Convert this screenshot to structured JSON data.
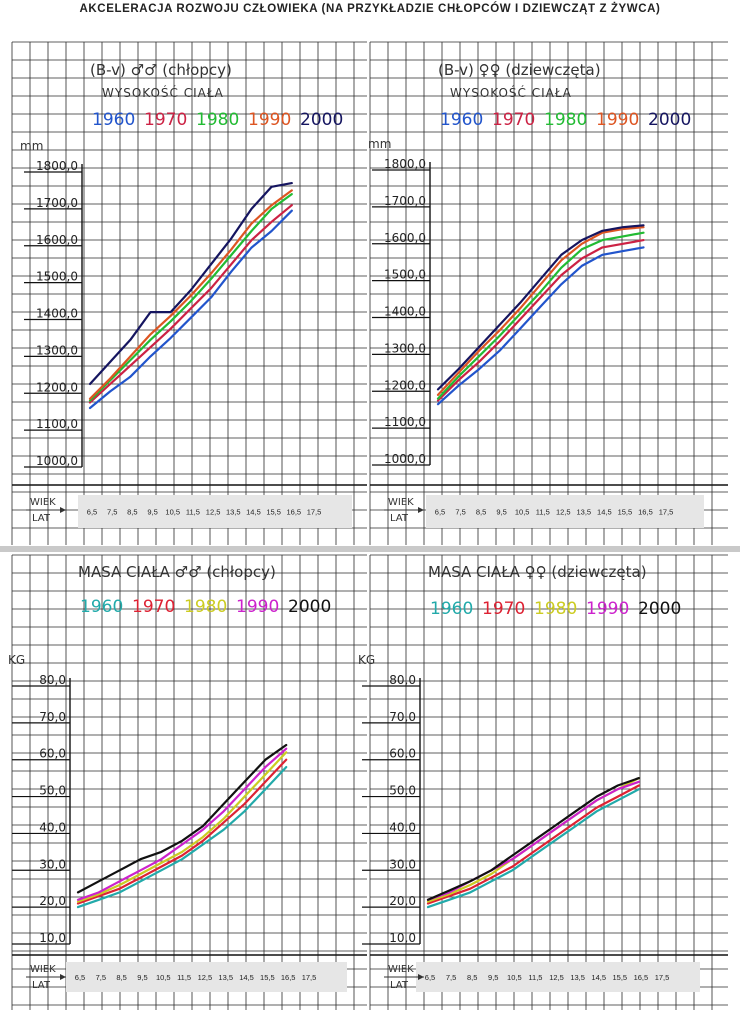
{
  "page_title": "AKCELERACJA ROZWOJU CZŁOWIEKA (NA PRZYKŁADZIE CHŁOPCÓW I DZIEWCZĄT Z ŻYWCA)",
  "chart_data": [
    {
      "id": "boys-height",
      "type": "line",
      "title": "(B-v) ♂♂ (chłopcy)",
      "subtitle": "WYSOKOŚĆ CIAŁA",
      "ylabel": "mm",
      "xlabel": "WIEK LAT",
      "ylim": [
        1000,
        1800
      ],
      "yticks": [
        "1800,0",
        "1700,0",
        "1600,0",
        "1500,0",
        "1400,0",
        "1300,0",
        "1200,0",
        "1100,0",
        "1000,0"
      ],
      "ytick_values": [
        1800,
        1700,
        1600,
        1500,
        1400,
        1300,
        1200,
        1100,
        1000
      ],
      "x": [
        6.5,
        7.5,
        8.5,
        9.5,
        10.5,
        11.5,
        12.5,
        13.5,
        14.5,
        15.5,
        16.5
      ],
      "xticks": [
        "6,5",
        "7,5",
        "8,5",
        "9,5",
        "10,5",
        "11,5",
        "12,5",
        "13,5",
        "14,5",
        "15,5",
        "16,5",
        "17,5"
      ],
      "series": [
        {
          "name": "1960",
          "color": "#2255cc",
          "values": [
            1160,
            1205,
            1245,
            1300,
            1350,
            1405,
            1460,
            1530,
            1595,
            1640,
            1695
          ]
        },
        {
          "name": "1970",
          "color": "#cc2244",
          "values": [
            1175,
            1225,
            1275,
            1325,
            1375,
            1430,
            1485,
            1550,
            1615,
            1665,
            1710
          ]
        },
        {
          "name": "1980",
          "color": "#22bb33",
          "values": [
            1180,
            1235,
            1290,
            1345,
            1395,
            1450,
            1510,
            1575,
            1640,
            1700,
            1740
          ]
        },
        {
          "name": "1990",
          "color": "#dd5522",
          "values": [
            1185,
            1240,
            1300,
            1360,
            1410,
            1465,
            1525,
            1590,
            1660,
            1710,
            1750
          ]
        },
        {
          "name": "2000",
          "color": "#151560",
          "values": [
            1225,
            1285,
            1345,
            1420,
            1420,
            1480,
            1550,
            1620,
            1700,
            1760,
            1770
          ]
        }
      ]
    },
    {
      "id": "girls-height",
      "type": "line",
      "title": "(B-v) ♀♀ (dziewczęta)",
      "subtitle": "WYSOKOŚĆ CIAŁA",
      "ylabel": "mm",
      "xlabel": "WIEK LAT",
      "ylim": [
        1000,
        1800
      ],
      "yticks": [
        "1800,0",
        "1700,0",
        "1600,0",
        "1500,0",
        "1400,0",
        "1300,0",
        "1200,0",
        "1100,0",
        "1000,0"
      ],
      "ytick_values": [
        1800,
        1700,
        1600,
        1500,
        1400,
        1300,
        1200,
        1100,
        1000
      ],
      "x": [
        6.5,
        7.5,
        8.5,
        9.5,
        10.5,
        11.5,
        12.5,
        13.5,
        14.5,
        15.5,
        16.5
      ],
      "xticks": [
        "6,5",
        "7,5",
        "8,5",
        "9,5",
        "10,5",
        "11,5",
        "12,5",
        "13,5",
        "14,5",
        "15,5",
        "16,5",
        "17,5"
      ],
      "series": [
        {
          "name": "1960",
          "color": "#2255cc",
          "values": [
            1165,
            1215,
            1260,
            1310,
            1370,
            1430,
            1490,
            1540,
            1570,
            1580,
            1590
          ]
        },
        {
          "name": "1970",
          "color": "#cc2244",
          "values": [
            1175,
            1230,
            1280,
            1335,
            1395,
            1455,
            1515,
            1560,
            1590,
            1600,
            1610
          ]
        },
        {
          "name": "1980",
          "color": "#22bb33",
          "values": [
            1180,
            1240,
            1295,
            1350,
            1410,
            1470,
            1535,
            1585,
            1610,
            1620,
            1630
          ]
        },
        {
          "name": "1990",
          "color": "#dd5522",
          "values": [
            1190,
            1250,
            1310,
            1365,
            1425,
            1490,
            1555,
            1600,
            1630,
            1640,
            1645
          ]
        },
        {
          "name": "2000",
          "color": "#151560",
          "values": [
            1205,
            1260,
            1320,
            1380,
            1440,
            1505,
            1570,
            1610,
            1635,
            1645,
            1650
          ]
        }
      ]
    },
    {
      "id": "boys-mass",
      "type": "line",
      "title": "MASA CIAŁA ♂♂ (chłopcy)",
      "subtitle": "",
      "ylabel": "KG",
      "xlabel": "WIEK LAT",
      "ylim": [
        10,
        80
      ],
      "yticks": [
        "80,0",
        "70,0",
        "60,0",
        "50,0",
        "40,0",
        "30,0",
        "20,0",
        "10,0"
      ],
      "ytick_values": [
        80,
        70,
        60,
        50,
        40,
        30,
        20,
        10
      ],
      "x": [
        6.5,
        7.5,
        8.5,
        9.5,
        10.5,
        11.5,
        12.5,
        13.5,
        14.5,
        15.5,
        16.5
      ],
      "xticks": [
        "6,5",
        "7,5",
        "8,5",
        "9,5",
        "10,5",
        "11,5",
        "12,5",
        "13,5",
        "14,5",
        "15,5",
        "16,5",
        "17,5"
      ],
      "series": [
        {
          "name": "1960",
          "color": "#22aaaa",
          "values": [
            20,
            22,
            24,
            27,
            30,
            33,
            37,
            41,
            46,
            52,
            58
          ]
        },
        {
          "name": "1970",
          "color": "#dd2233",
          "values": [
            21,
            23,
            25,
            28,
            31,
            34,
            38,
            43,
            48,
            54,
            60
          ]
        },
        {
          "name": "1980",
          "color": "#cccc22",
          "values": [
            21.5,
            23.5,
            26,
            29,
            32,
            35,
            39,
            44,
            50,
            56,
            62
          ]
        },
        {
          "name": "1990",
          "color": "#cc22cc",
          "values": [
            22,
            24,
            27,
            30,
            33,
            37,
            41,
            46,
            52,
            58,
            63
          ]
        },
        {
          "name": "2000",
          "color": "#111111",
          "values": [
            24,
            27,
            30,
            33,
            35,
            38,
            42,
            48,
            54,
            60,
            64
          ]
        }
      ]
    },
    {
      "id": "girls-mass",
      "type": "line",
      "title": "MASA CIAŁA ♀♀ (dziewczęta)",
      "subtitle": "",
      "ylabel": "KG",
      "xlabel": "WIEK LAT",
      "ylim": [
        10,
        80
      ],
      "yticks": [
        "80,0",
        "70,0",
        "60,0",
        "50,0",
        "40,0",
        "30,0",
        "20,0",
        "10,0"
      ],
      "ytick_values": [
        80,
        70,
        60,
        50,
        40,
        30,
        20,
        10
      ],
      "x": [
        6.5,
        7.5,
        8.5,
        9.5,
        10.5,
        11.5,
        12.5,
        13.5,
        14.5,
        15.5,
        16.5
      ],
      "xticks": [
        "6,5",
        "7,5",
        "8,5",
        "9,5",
        "10,5",
        "11,5",
        "12,5",
        "13,5",
        "14,5",
        "15,5",
        "16,5",
        "17,5"
      ],
      "series": [
        {
          "name": "1960",
          "color": "#22aaaa",
          "values": [
            20,
            22,
            24,
            27,
            30,
            34,
            38,
            42,
            46,
            49,
            52
          ]
        },
        {
          "name": "1970",
          "color": "#dd2233",
          "values": [
            21,
            23,
            25,
            28,
            31,
            35,
            39,
            43,
            47,
            50,
            53
          ]
        },
        {
          "name": "1980",
          "color": "#cccc22",
          "values": [
            21.5,
            23.5,
            26,
            29,
            33,
            37,
            41,
            45,
            49,
            52,
            55
          ]
        },
        {
          "name": "1990",
          "color": "#cc22cc",
          "values": [
            22,
            24,
            27,
            30,
            33,
            37,
            41,
            45,
            49,
            52,
            54
          ]
        },
        {
          "name": "2000",
          "color": "#111111",
          "values": [
            22,
            24.5,
            27,
            30,
            34,
            38,
            42,
            46,
            50,
            53,
            55
          ]
        }
      ]
    }
  ]
}
